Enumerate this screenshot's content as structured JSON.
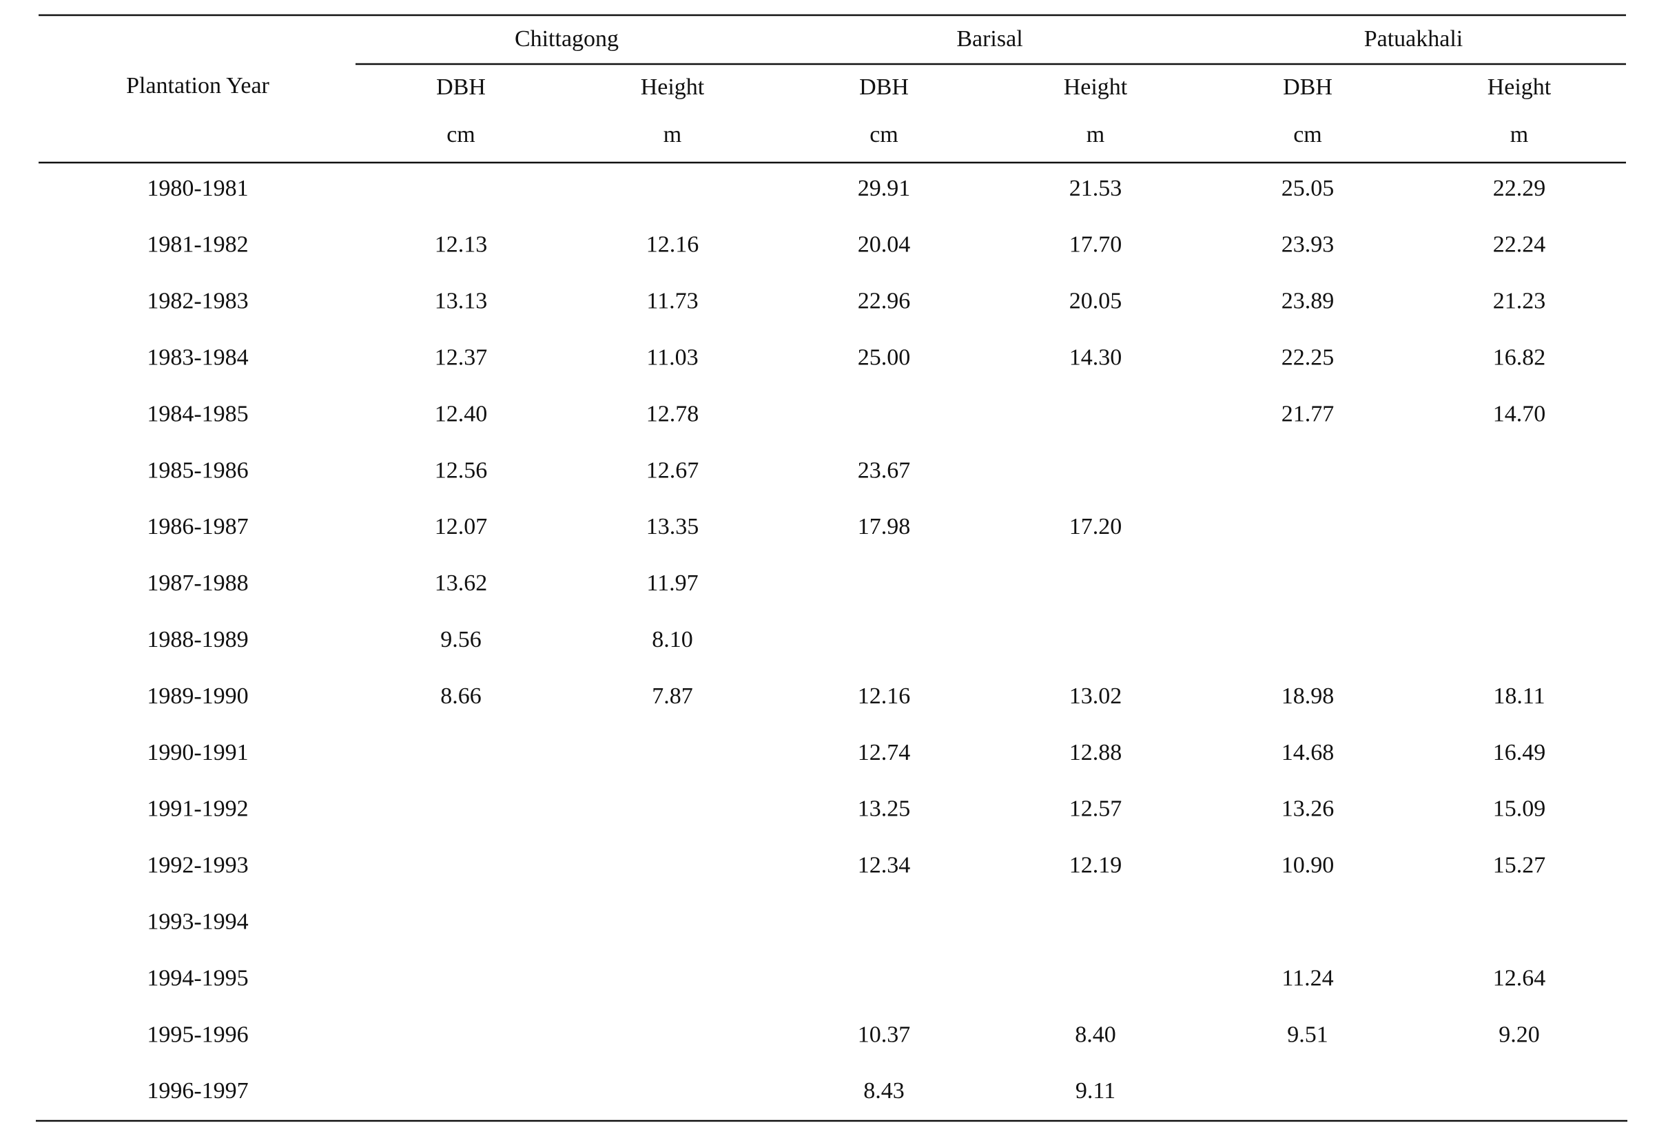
{
  "table": {
    "row_header": "Plantation Year",
    "groups": [
      {
        "name": "Chittagong",
        "columns": [
          {
            "label": "DBH",
            "unit": "cm"
          },
          {
            "label": "Height",
            "unit": "m"
          }
        ]
      },
      {
        "name": "Barisal",
        "columns": [
          {
            "label": "DBH",
            "unit": "cm"
          },
          {
            "label": "Height",
            "unit": "m"
          }
        ]
      },
      {
        "name": "Patuakhali",
        "columns": [
          {
            "label": "DBH",
            "unit": "cm"
          },
          {
            "label": "Height",
            "unit": "m"
          }
        ]
      }
    ],
    "rows": [
      [
        "1980-1981",
        null,
        null,
        "29.91",
        "21.53",
        "25.05",
        "22.29"
      ],
      [
        "1981-1982",
        "12.13",
        "12.16",
        "20.04",
        "17.70",
        "23.93",
        "22.24"
      ],
      [
        "1982-1983",
        "13.13",
        "11.73",
        "22.96",
        "20.05",
        "23.89",
        "21.23"
      ],
      [
        "1983-1984",
        "12.37",
        "11.03",
        "25.00",
        "14.30",
        "22.25",
        "16.82"
      ],
      [
        "1984-1985",
        "12.40",
        "12.78",
        null,
        null,
        "21.77",
        "14.70"
      ],
      [
        "1985-1986",
        "12.56",
        "12.67",
        "23.67",
        null,
        null,
        null
      ],
      [
        "1986-1987",
        "12.07",
        "13.35",
        "17.98",
        "17.20",
        null,
        null
      ],
      [
        "1987-1988",
        "13.62",
        "11.97",
        null,
        null,
        null,
        null
      ],
      [
        "1988-1989",
        "9.56",
        "8.10",
        null,
        null,
        null,
        null
      ],
      [
        "1989-1990",
        "8.66",
        "7.87",
        "12.16",
        "13.02",
        "18.98",
        "18.11"
      ],
      [
        "1990-1991",
        null,
        null,
        "12.74",
        "12.88",
        "14.68",
        "16.49"
      ],
      [
        "1991-1992",
        null,
        null,
        "13.25",
        "12.57",
        "13.26",
        "15.09"
      ],
      [
        "1992-1993",
        null,
        null,
        "12.34",
        "12.19",
        "10.90",
        "15.27"
      ],
      [
        "1993-1994",
        null,
        null,
        null,
        null,
        null,
        null
      ],
      [
        "1994-1995",
        null,
        null,
        null,
        null,
        "11.24",
        "12.64"
      ],
      [
        "1995-1996",
        null,
        null,
        "10.37",
        "8.40",
        "9.51",
        "9.20"
      ],
      [
        "1996-1997",
        null,
        null,
        "8.43",
        "9.11",
        null,
        null
      ]
    ]
  }
}
